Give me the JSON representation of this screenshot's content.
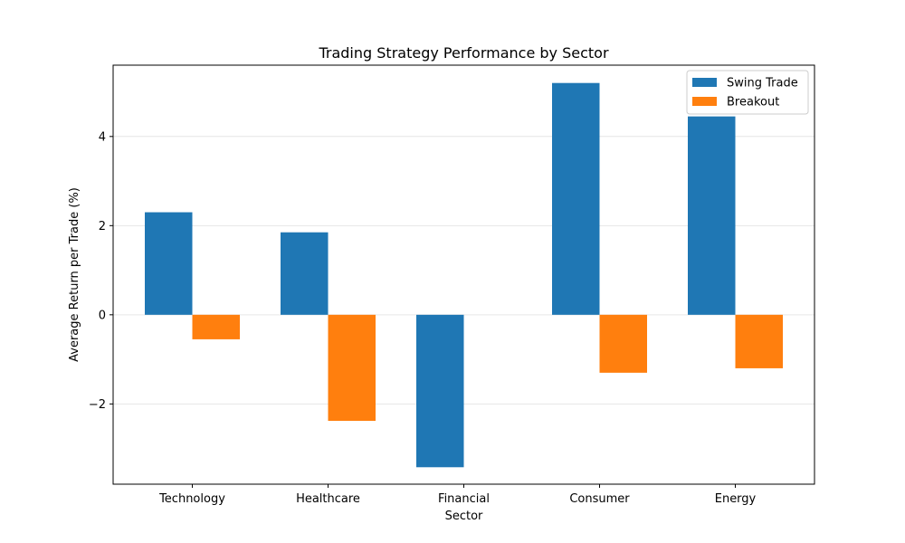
{
  "chart_data": {
    "type": "bar",
    "title": "Trading Strategy Performance by Sector",
    "xlabel": "Sector",
    "ylabel": "Average Return per Trade (%)",
    "categories": [
      "Technology",
      "Healthcare",
      "Financial",
      "Consumer",
      "Energy"
    ],
    "series": [
      {
        "name": "Swing Trade",
        "color": "#1f77b4",
        "values": [
          2.3,
          1.85,
          -3.42,
          5.2,
          4.45
        ]
      },
      {
        "name": "Breakout",
        "color": "#ff7f0e",
        "values": [
          -0.55,
          -2.38,
          0.0,
          -1.3,
          -1.2
        ]
      }
    ],
    "ylim": [
      -3.8,
      5.6
    ],
    "yticks": [
      -2,
      0,
      2,
      4
    ],
    "ytick_labels": [
      "−2",
      "0",
      "2",
      "4"
    ],
    "grid": true,
    "legend_position": "top-right"
  }
}
